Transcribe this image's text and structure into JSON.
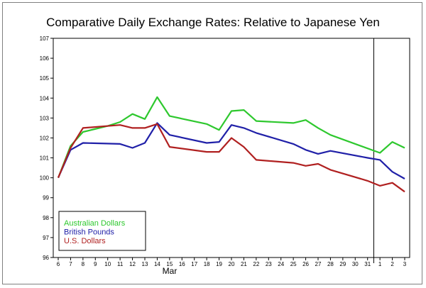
{
  "chart_data": {
    "type": "line",
    "title": "Comparative Daily Exchange Rates: Relative to Japanese Yen",
    "xlabel": "Mar",
    "ylabel": "",
    "ylim": [
      96,
      107
    ],
    "yticks": [
      96,
      97,
      98,
      99,
      100,
      101,
      102,
      103,
      104,
      105,
      106,
      107
    ],
    "x_ticks": [
      "6",
      "7",
      "8",
      "9",
      "10",
      "11",
      "12",
      "13",
      "14",
      "15",
      "16",
      "17",
      "18",
      "19",
      "20",
      "21",
      "22",
      "23",
      "24",
      "25",
      "26",
      "27",
      "28",
      "29",
      "30",
      "31",
      "1",
      "2",
      "3"
    ],
    "divider_after_tick": "31",
    "grid": false,
    "legend_position": "bottom-left",
    "series": [
      {
        "name": "Australian Dollars",
        "color": "#2ec82e",
        "x": [
          "6",
          "7",
          "8",
          "10",
          "11",
          "12",
          "13",
          "14",
          "15",
          "18",
          "19",
          "20",
          "21",
          "22",
          "25",
          "26",
          "27",
          "28",
          "1",
          "2",
          "3"
        ],
        "values": [
          100.0,
          101.6,
          102.3,
          102.6,
          102.8,
          103.2,
          102.95,
          104.05,
          103.1,
          102.7,
          102.4,
          103.35,
          103.4,
          102.85,
          102.75,
          102.9,
          102.5,
          102.15,
          101.25,
          101.8,
          101.5
        ]
      },
      {
        "name": "British Pounds",
        "color": "#2020a8",
        "x": [
          "6",
          "7",
          "8",
          "11",
          "12",
          "13",
          "14",
          "15",
          "18",
          "19",
          "20",
          "21",
          "22",
          "25",
          "26",
          "27",
          "28",
          "31",
          "1",
          "2",
          "3"
        ],
        "values": [
          100.0,
          101.4,
          101.75,
          101.7,
          101.5,
          101.75,
          102.75,
          102.15,
          101.75,
          101.8,
          102.65,
          102.5,
          102.25,
          101.7,
          101.4,
          101.2,
          101.35,
          101.0,
          100.9,
          100.3,
          99.95
        ]
      },
      {
        "name": "U.S. Dollars",
        "color": "#b02020",
        "x": [
          "6",
          "7",
          "8",
          "11",
          "12",
          "13",
          "14",
          "15",
          "18",
          "19",
          "20",
          "21",
          "22",
          "25",
          "26",
          "27",
          "28",
          "31",
          "1",
          "2",
          "3"
        ],
        "values": [
          100.0,
          101.5,
          102.5,
          102.65,
          102.5,
          102.5,
          102.7,
          101.55,
          101.3,
          101.3,
          102.0,
          101.55,
          100.9,
          100.75,
          100.6,
          100.7,
          100.4,
          99.85,
          99.6,
          99.75,
          99.3
        ]
      }
    ]
  }
}
